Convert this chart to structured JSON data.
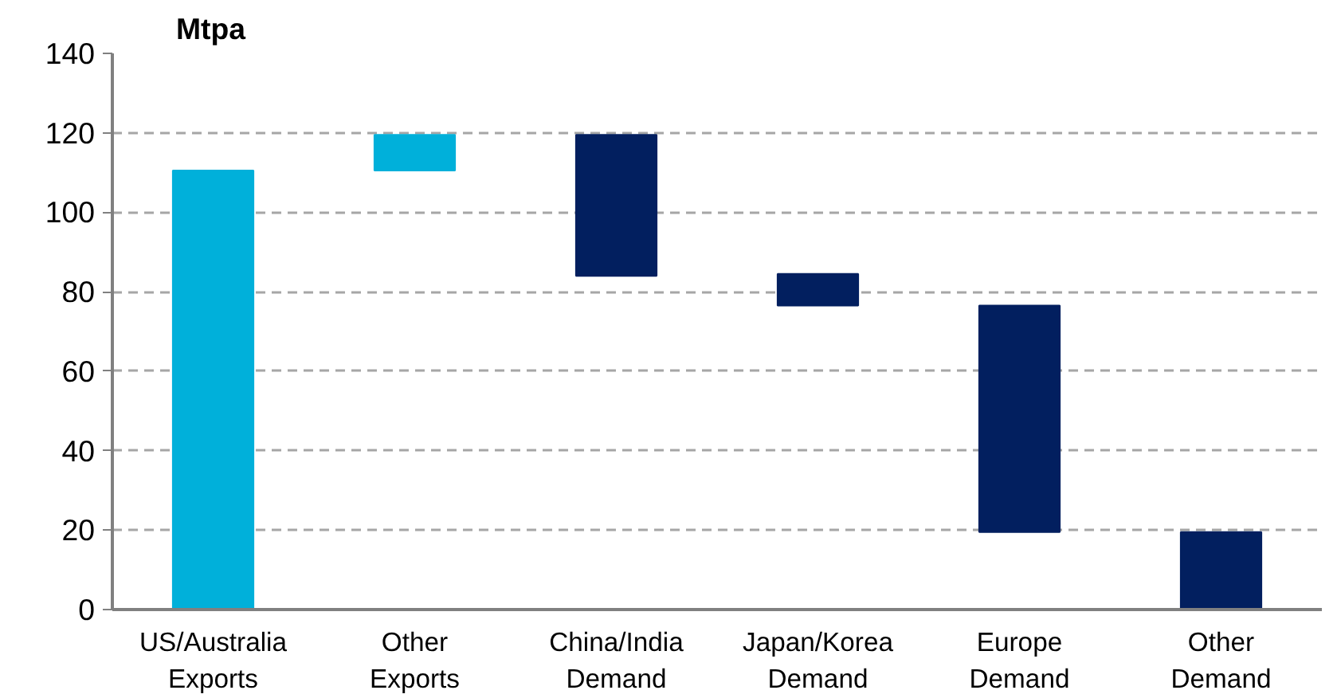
{
  "chart_data": {
    "type": "bar",
    "ylabel": "Mtpa",
    "categories": [
      "US/Australia Exports",
      "Other Exports",
      "China/India Demand",
      "Japan/Korea Demand",
      "Europe Demand",
      "Other Demand"
    ],
    "values": [
      110.5,
      9,
      35.5,
      8,
      57,
      19.5
    ],
    "base": [
      0,
      110.5,
      84,
      76.5,
      19.5,
      0
    ],
    "colors": [
      "#00b0da",
      "#00b0da",
      "#021f5f",
      "#021f5f",
      "#021f5f",
      "#021f5f"
    ],
    "ylim": [
      0,
      140
    ],
    "yticks": [
      0,
      20,
      40,
      60,
      80,
      100,
      120,
      140
    ],
    "grid": "y"
  }
}
